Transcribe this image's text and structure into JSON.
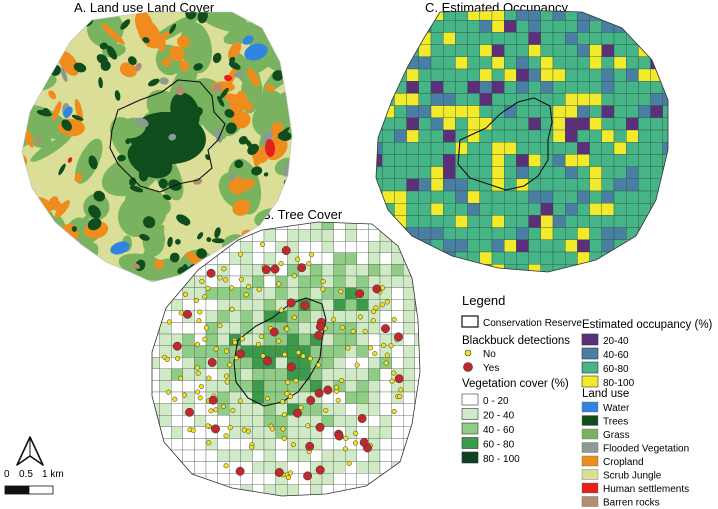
{
  "panels": {
    "a_title": "A. Land use Land Cover",
    "b_title": "B. Tree Cover",
    "c_title": "C. Estimated Occupancy"
  },
  "legend": {
    "title": "Legend",
    "reserve_label": "Conservation Reserve",
    "detections": {
      "title": "Blackbuck detections",
      "items": [
        {
          "label": "No",
          "color": "#f3e11f"
        },
        {
          "label": "Yes",
          "color": "#c0282d"
        }
      ]
    },
    "vegetation": {
      "title": "Vegetation cover (%)",
      "items": [
        {
          "label": "0 - 20",
          "color": "#ffffff"
        },
        {
          "label": "20 - 40",
          "color": "#cfeac4"
        },
        {
          "label": "40 - 60",
          "color": "#8fcc85"
        },
        {
          "label": "60 - 80",
          "color": "#3c9a4a"
        },
        {
          "label": "80 - 100",
          "color": "#0b4222"
        }
      ]
    },
    "occupancy": {
      "title": "Estimated occupancy (%)",
      "items": [
        {
          "label": "20-40",
          "color": "#5c2f7b"
        },
        {
          "label": "40-60",
          "color": "#4a7fa4"
        },
        {
          "label": "60-80",
          "color": "#45b487"
        },
        {
          "label": "80-100",
          "color": "#f2ea2a"
        }
      ]
    },
    "landuse": {
      "title": "Land use",
      "items": [
        {
          "label": "Water",
          "color": "#2f85df"
        },
        {
          "label": "Trees",
          "color": "#0f4d1c"
        },
        {
          "label": "Grass",
          "color": "#79b35f"
        },
        {
          "label": "Flooded Vegetation",
          "color": "#8b9a93"
        },
        {
          "label": "Cropland",
          "color": "#f08c1e"
        },
        {
          "label": "Scrub Jungle",
          "color": "#dbde96"
        },
        {
          "label": "Human settlements",
          "color": "#e61e1e"
        },
        {
          "label": "Barren rocks",
          "color": "#b08f70"
        }
      ]
    }
  },
  "scale_bar": {
    "ticks": [
      "0",
      "0.5",
      "1 km"
    ]
  },
  "north_arrow": {
    "icon": "north-arrow-icon"
  }
}
